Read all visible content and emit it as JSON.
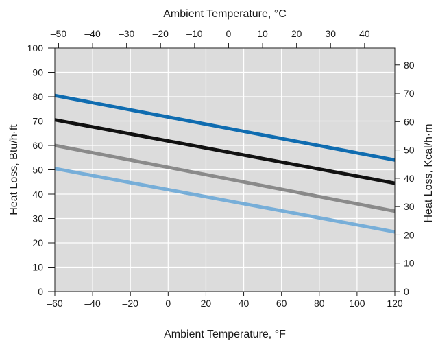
{
  "chart_data": {
    "type": "line",
    "xlabel": "Ambient Temperature, °F",
    "x2label": "Ambient Temperature, °C",
    "ylabel": "Heat Loss, Btu/h·ft",
    "y2label": "Heat Loss, Kcal/h·m",
    "xlim": [
      -60,
      120
    ],
    "ylim": [
      0,
      100
    ],
    "x2lim": [
      -51.1,
      48.9
    ],
    "y2lim": [
      0,
      86.0
    ],
    "xticks": [
      "–60",
      "–40",
      "–20",
      "0",
      "20",
      "40",
      "60",
      "80",
      "100",
      "120"
    ],
    "yticks": [
      "0",
      "10",
      "20",
      "30",
      "40",
      "50",
      "60",
      "70",
      "80",
      "90",
      "100"
    ],
    "x2ticks": [
      "–50",
      "–40",
      "–30",
      "–20",
      "–10",
      "0",
      "10",
      "20",
      "30",
      "40"
    ],
    "y2ticks": [
      "0",
      "10",
      "20",
      "30",
      "40",
      "50",
      "60",
      "70",
      "80"
    ],
    "grid": true,
    "background": "#dcdcdc",
    "series": [
      {
        "color": "#0f6cb0",
        "x": [
          -60,
          120
        ],
        "y": [
          80.5,
          54
        ]
      },
      {
        "color": "#111111",
        "x": [
          -60,
          120
        ],
        "y": [
          70.5,
          44.5
        ]
      },
      {
        "color": "#8a8a8a",
        "x": [
          -60,
          120
        ],
        "y": [
          60,
          33
        ]
      },
      {
        "color": "#77aed8",
        "x": [
          -60,
          120
        ],
        "y": [
          50.5,
          24.5
        ]
      }
    ]
  }
}
